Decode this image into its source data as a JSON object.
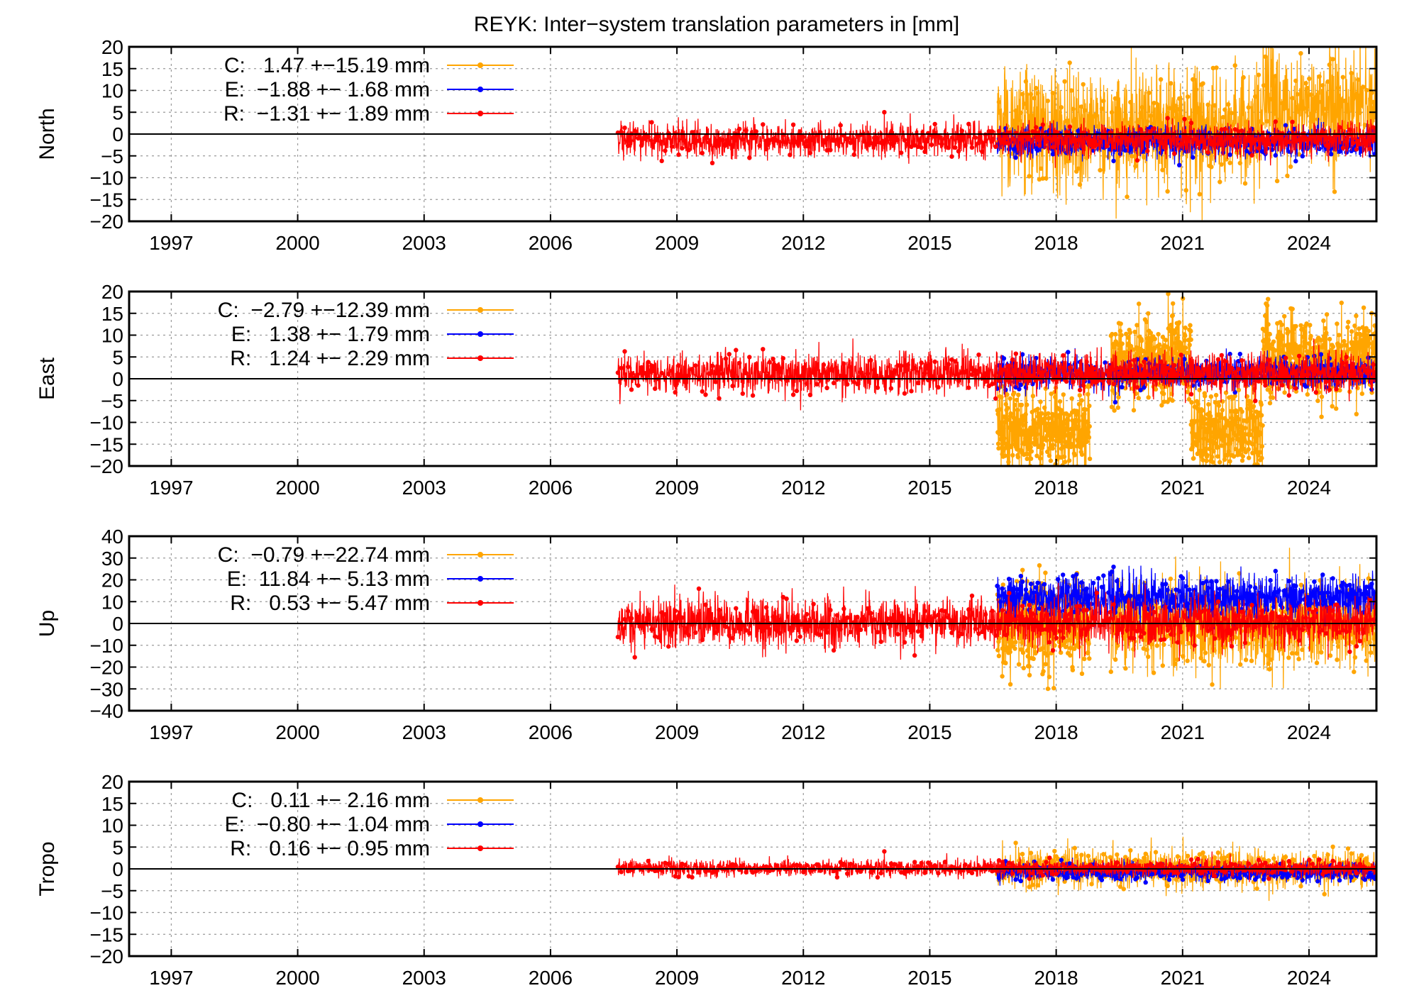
{
  "title": "REYK: Inter−system translation parameters in [mm]",
  "colors": {
    "C": "#ffa500",
    "E": "#0000ff",
    "R": "#ff0000",
    "axis": "#000000",
    "grid": "#9a9a9a"
  },
  "chart_data": [
    {
      "type": "line",
      "ylabel": "North",
      "ylim": [
        -20,
        20
      ],
      "yticks": [
        20,
        15,
        10,
        5,
        0,
        -5,
        -10,
        -15,
        -20
      ],
      "xlim": [
        1996.0,
        2025.6
      ],
      "xticks": [
        1997,
        2000,
        2003,
        2006,
        2009,
        2012,
        2015,
        2018,
        2021,
        2024
      ],
      "grid": true,
      "legend_position": "top-left",
      "series": [
        {
          "name": "C",
          "label": "C:   1.47 +−15.19 mm",
          "color": "#ffa500",
          "mean": 1.47,
          "sigma": 15.19,
          "start": 2016.6,
          "segments": [
            [
              2016.6,
              2025.6
            ]
          ]
        },
        {
          "name": "E",
          "label": "E:  −1.88 +− 1.68 mm",
          "color": "#0000ff",
          "mean": -1.88,
          "sigma": 1.68,
          "start": 2016.6,
          "segments": [
            [
              2016.6,
              2025.6
            ]
          ]
        },
        {
          "name": "R",
          "label": "R:  −1.31 +− 1.89 mm",
          "color": "#ff0000",
          "mean": -1.31,
          "sigma": 1.89,
          "start": 2007.6,
          "segments": [
            [
              2007.6,
              2025.6
            ]
          ]
        }
      ]
    },
    {
      "type": "line",
      "ylabel": "East",
      "ylim": [
        -20,
        20
      ],
      "yticks": [
        20,
        15,
        10,
        5,
        0,
        -5,
        -10,
        -15,
        -20
      ],
      "xlim": [
        1996.0,
        2025.6
      ],
      "xticks": [
        1997,
        2000,
        2003,
        2006,
        2009,
        2012,
        2015,
        2018,
        2021,
        2024
      ],
      "grid": true,
      "legend_position": "top-left",
      "series": [
        {
          "name": "C",
          "label": "C:  −2.79 +−12.39 mm",
          "color": "#ffa500",
          "mean": -2.79,
          "sigma": 12.39,
          "start": 2016.6,
          "segments": [
            [
              2016.6,
              2018.8
            ],
            [
              2019.3,
              2021.2
            ],
            [
              2021.2,
              2022.9
            ],
            [
              2022.9,
              2025.6
            ]
          ]
        },
        {
          "name": "E",
          "label": "E:   1.38 +− 1.79 mm",
          "color": "#0000ff",
          "mean": 1.38,
          "sigma": 1.79,
          "start": 2016.6,
          "segments": [
            [
              2016.6,
              2025.6
            ]
          ]
        },
        {
          "name": "R",
          "label": "R:   1.24 +− 2.29 mm",
          "color": "#ff0000",
          "mean": 1.24,
          "sigma": 2.29,
          "start": 2007.6,
          "segments": [
            [
              2007.6,
              2025.6
            ]
          ]
        }
      ]
    },
    {
      "type": "line",
      "ylabel": "Up",
      "ylim": [
        -40,
        40
      ],
      "yticks": [
        40,
        30,
        20,
        10,
        0,
        -10,
        -20,
        -30,
        -40
      ],
      "xlim": [
        1996.0,
        2025.6
      ],
      "xticks": [
        1997,
        2000,
        2003,
        2006,
        2009,
        2012,
        2015,
        2018,
        2021,
        2024
      ],
      "grid": true,
      "legend_position": "top-left",
      "series": [
        {
          "name": "C",
          "label": "C:  −0.79 +−22.74 mm",
          "color": "#ffa500",
          "mean": -0.79,
          "sigma": 22.74,
          "start": 2016.6,
          "segments": [
            [
              2016.6,
              2018.8
            ],
            [
              2019.3,
              2025.6
            ]
          ]
        },
        {
          "name": "E",
          "label": "E:  11.84 +− 5.13 mm",
          "color": "#0000ff",
          "mean": 11.84,
          "sigma": 5.13,
          "start": 2016.6,
          "segments": [
            [
              2016.6,
              2025.6
            ]
          ]
        },
        {
          "name": "R",
          "label": "R:   0.53 +− 5.47 mm",
          "color": "#ff0000",
          "mean": 0.53,
          "sigma": 5.47,
          "start": 2007.6,
          "segments": [
            [
              2007.6,
              2025.6
            ]
          ]
        }
      ]
    },
    {
      "type": "line",
      "ylabel": "Tropo",
      "ylim": [
        -20,
        20
      ],
      "yticks": [
        20,
        15,
        10,
        5,
        0,
        -5,
        -10,
        -15,
        -20
      ],
      "xlim": [
        1996.0,
        2025.6
      ],
      "xticks": [
        1997,
        2000,
        2003,
        2006,
        2009,
        2012,
        2015,
        2018,
        2021,
        2024
      ],
      "grid": true,
      "legend_position": "top-left",
      "series": [
        {
          "name": "C",
          "label": "C:   0.11 +− 2.16 mm",
          "color": "#ffa500",
          "mean": 0.11,
          "sigma": 2.16,
          "start": 2016.6,
          "segments": [
            [
              2016.6,
              2025.6
            ]
          ]
        },
        {
          "name": "E",
          "label": "E:  −0.80 +− 1.04 mm",
          "color": "#0000ff",
          "mean": -0.8,
          "sigma": 1.04,
          "start": 2016.6,
          "segments": [
            [
              2016.6,
              2025.6
            ]
          ]
        },
        {
          "name": "R",
          "label": "R:   0.16 +− 0.95 mm",
          "color": "#ff0000",
          "mean": 0.16,
          "sigma": 0.95,
          "start": 2007.6,
          "segments": [
            [
              2007.6,
              2025.6
            ]
          ]
        }
      ]
    }
  ]
}
